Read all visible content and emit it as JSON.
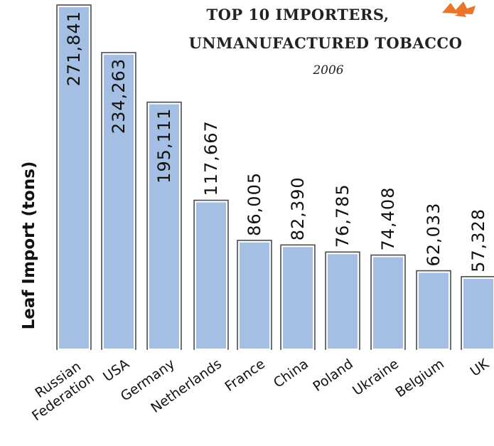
{
  "chart_data": {
    "type": "bar",
    "title": "TOP 10 IMPORTERS, UNMANUFACTURED TOBACCO",
    "title_lines": [
      "TOP 10 IMPORTERS,",
      "UNMANUFACTURED TOBACCO"
    ],
    "subtitle": "2006",
    "xlabel": "",
    "ylabel": "Leaf Import (tons)",
    "categories": [
      "Russian Federation",
      "USA",
      "Germany",
      "Netherlands",
      "France",
      "China",
      "Poland",
      "Ukraine",
      "Belgium",
      "UK"
    ],
    "category_lines": [
      [
        "Russian",
        "Federation"
      ],
      [
        "USA"
      ],
      [
        "Germany"
      ],
      [
        "Netherlands"
      ],
      [
        "France"
      ],
      [
        "China"
      ],
      [
        "Poland"
      ],
      [
        "Ukraine"
      ],
      [
        "Belgium"
      ],
      [
        "UK"
      ]
    ],
    "values": [
      271841,
      234263,
      195111,
      117667,
      86005,
      82390,
      76785,
      74408,
      62033,
      57328
    ],
    "value_labels": [
      "271,841",
      "234,263",
      "195,111",
      "117,667",
      "86,005",
      "82,390",
      "76,785",
      "74,408",
      "62,033",
      "57,328"
    ],
    "ylim": [
      0,
      271841
    ],
    "grid": false,
    "legend": "none",
    "colors": {
      "bar_fill": "#a4bfe3",
      "bar_stroke": "#4a4a4a",
      "bar_highlight": "#ffffff",
      "text": "#111111",
      "ornament": "#e8752a"
    }
  }
}
